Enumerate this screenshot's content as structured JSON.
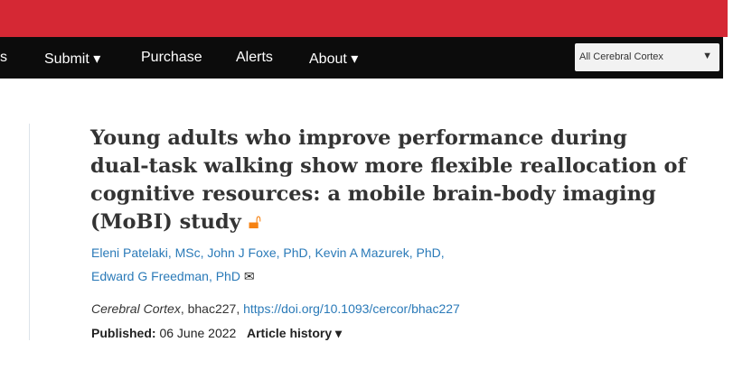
{
  "nav": {
    "items": [
      {
        "label": "s"
      },
      {
        "label": "Submit ▾"
      },
      {
        "label": "Purchase"
      },
      {
        "label": "Alerts"
      },
      {
        "label": "About ▾"
      }
    ],
    "search_scope": "All Cerebral Cortex"
  },
  "article": {
    "title": "Young adults who improve performance during dual-task walking show more flexible reallocation of cognitive resources: a mobile brain-body imaging (MoBI) study",
    "authors_line1": "Eleni Patelaki, MSc, John J Foxe, PhD, Kevin A Mazurek, PhD,",
    "authors_line2": "Edward G Freedman, PhD",
    "journal": "Cerebral Cortex",
    "article_id": ", bhac227, ",
    "doi": "https://doi.org/10.1093/cercor/bhac227",
    "published_label": "Published:",
    "published_date": "06 June 2022",
    "history": "Article history ▾"
  },
  "colors": {
    "brand_red": "#d52834",
    "nav_bg": "#0c0c0c",
    "link": "#2a7ab8",
    "open_access": "#f68212"
  }
}
